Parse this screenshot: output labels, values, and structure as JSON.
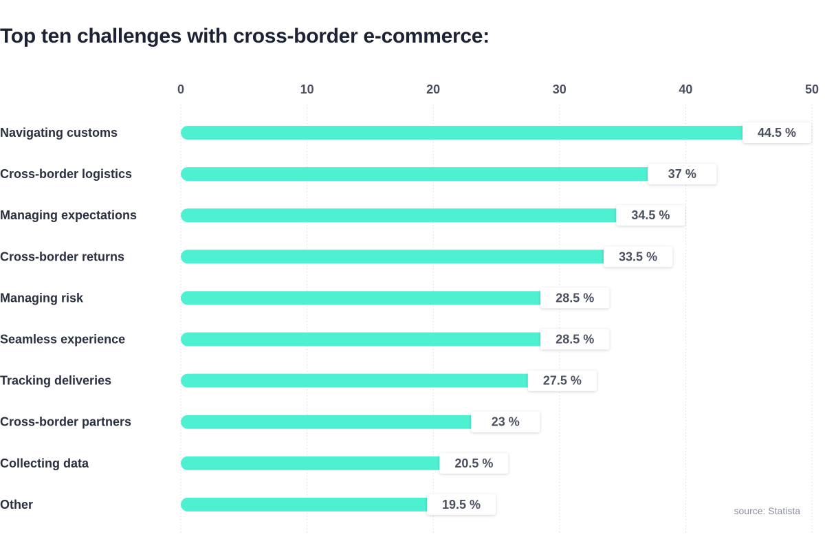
{
  "page": {
    "title": "Top ten challenges with cross-border e-commerce:",
    "source": "source: Statista"
  },
  "colors": {
    "bar": "#4ef0d2",
    "grid": "#d9dce2",
    "label_box": "#ffffff"
  },
  "chart_data": {
    "type": "bar",
    "orientation": "horizontal",
    "title": "Top ten challenges with cross-border e-commerce:",
    "categories": [
      "Navigating customs",
      "Cross-border logistics",
      "Managing expectations",
      "Cross-border returns",
      "Managing risk",
      "Seamless experience",
      "Tracking deliveries",
      "Cross-border partners",
      "Collecting data",
      "Other"
    ],
    "values": [
      44.5,
      37,
      34.5,
      33.5,
      28.5,
      28.5,
      27.5,
      23,
      20.5,
      19.5
    ],
    "value_labels": [
      "44.5 %",
      "37 %",
      "34.5 %",
      "33.5 %",
      "28.5 %",
      "28.5 %",
      "27.5 %",
      "23 %",
      "20.5 %",
      "19.5 %"
    ],
    "xticks": [
      0,
      10,
      20,
      30,
      40,
      50
    ],
    "xlim": [
      0,
      50
    ],
    "xlabel": "",
    "ylabel": "",
    "grid": "vertical-dotted",
    "tick_position": "top"
  }
}
